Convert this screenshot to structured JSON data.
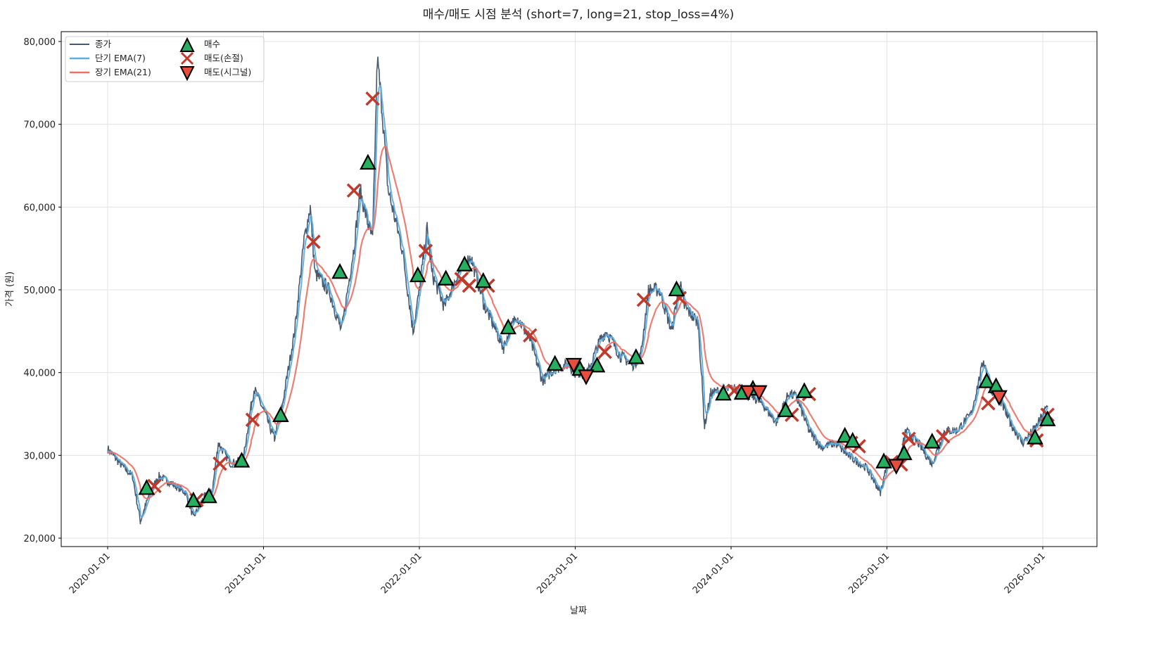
{
  "chart_data": {
    "type": "line",
    "title": "매수/매도 시점 분석 (short=7, long=21, stop_loss=4%)",
    "xlabel": "날짜",
    "ylabel": "가격 (원)",
    "xlim_year": [
      2019.85,
      2026.35
    ],
    "ylim": [
      19000,
      81000
    ],
    "grid": true,
    "legend_position": "top-left",
    "x_ticks": [
      {
        "year": 2020,
        "label": "2020-01-01"
      },
      {
        "year": 2021,
        "label": "2021-01-01"
      },
      {
        "year": 2022,
        "label": "2022-01-01"
      },
      {
        "year": 2023,
        "label": "2023-01-01"
      },
      {
        "year": 2024,
        "label": "2024-01-01"
      },
      {
        "year": 2025,
        "label": "2025-01-01"
      },
      {
        "year": 2026,
        "label": "2026-01-01"
      }
    ],
    "y_ticks": [
      {
        "value": 20000,
        "label": "20,000"
      },
      {
        "value": 30000,
        "label": "30,000"
      },
      {
        "value": 40000,
        "label": "40,000"
      },
      {
        "value": 50000,
        "label": "50,000"
      },
      {
        "value": 60000,
        "label": "60,000"
      },
      {
        "value": 70000,
        "label": "70,000"
      },
      {
        "value": 80000,
        "label": "80,000"
      }
    ],
    "legend": [
      {
        "key": "close",
        "label": "종가",
        "color": "#4a5a6e"
      },
      {
        "key": "ema_short",
        "label": "단기 EMA(7)",
        "color": "#5dade2"
      },
      {
        "key": "ema_long",
        "label": "장기 EMA(21)",
        "color": "#ec7063"
      },
      {
        "key": "buy",
        "label": "매수",
        "color": "#27ae60"
      },
      {
        "key": "sell_stop",
        "label": "매도(손절)",
        "color": "#c0392b"
      },
      {
        "key": "sell_signal",
        "label": "매도(시그널)",
        "color": "#e74c3c"
      }
    ],
    "ema_periods": {
      "short": 7,
      "long": 21
    },
    "close_waypoints": [
      [
        2020.0,
        30800
      ],
      [
        2020.08,
        29000
      ],
      [
        2020.16,
        27500
      ],
      [
        2020.21,
        22000
      ],
      [
        2020.27,
        25500
      ],
      [
        2020.33,
        27500
      ],
      [
        2020.42,
        26500
      ],
      [
        2020.5,
        25500
      ],
      [
        2020.55,
        22500
      ],
      [
        2020.62,
        25000
      ],
      [
        2020.67,
        25500
      ],
      [
        2020.71,
        31500
      ],
      [
        2020.79,
        29000
      ],
      [
        2020.87,
        29500
      ],
      [
        2020.92,
        36000
      ],
      [
        2020.94,
        38000
      ],
      [
        2021.0,
        35500
      ],
      [
        2021.07,
        32000
      ],
      [
        2021.12,
        36000
      ],
      [
        2021.2,
        45000
      ],
      [
        2021.26,
        56000
      ],
      [
        2021.3,
        60000
      ],
      [
        2021.33,
        52000
      ],
      [
        2021.42,
        50000
      ],
      [
        2021.5,
        45000
      ],
      [
        2021.58,
        55000
      ],
      [
        2021.62,
        62000
      ],
      [
        2021.67,
        58000
      ],
      [
        2021.7,
        56000
      ],
      [
        2021.73,
        78000
      ],
      [
        2021.76,
        72000
      ],
      [
        2021.8,
        62000
      ],
      [
        2021.89,
        55000
      ],
      [
        2021.96,
        45000
      ],
      [
        2022.0,
        50000
      ],
      [
        2022.05,
        57500
      ],
      [
        2022.08,
        52000
      ],
      [
        2022.16,
        48000
      ],
      [
        2022.25,
        52000
      ],
      [
        2022.33,
        54000
      ],
      [
        2022.42,
        48000
      ],
      [
        2022.47,
        46000
      ],
      [
        2022.54,
        43000
      ],
      [
        2022.62,
        47000
      ],
      [
        2022.71,
        44000
      ],
      [
        2022.79,
        39000
      ],
      [
        2022.87,
        40500
      ],
      [
        2022.96,
        41000
      ],
      [
        2023.0,
        40000
      ],
      [
        2023.08,
        40000
      ],
      [
        2023.16,
        44000
      ],
      [
        2023.2,
        45000
      ],
      [
        2023.29,
        42000
      ],
      [
        2023.37,
        41000
      ],
      [
        2023.42,
        42000
      ],
      [
        2023.47,
        50000
      ],
      [
        2023.54,
        50000
      ],
      [
        2023.62,
        45000
      ],
      [
        2023.67,
        51000
      ],
      [
        2023.7,
        48000
      ],
      [
        2023.79,
        46000
      ],
      [
        2023.83,
        33500
      ],
      [
        2023.87,
        37500
      ],
      [
        2023.96,
        38000
      ],
      [
        2024.04,
        38000
      ],
      [
        2024.12,
        37500
      ],
      [
        2024.21,
        36000
      ],
      [
        2024.29,
        34000
      ],
      [
        2024.37,
        37500
      ],
      [
        2024.42,
        37000
      ],
      [
        2024.5,
        33000
      ],
      [
        2024.58,
        31000
      ],
      [
        2024.67,
        31500
      ],
      [
        2024.75,
        30000
      ],
      [
        2024.87,
        28500
      ],
      [
        2024.96,
        25500
      ],
      [
        2025.0,
        29000
      ],
      [
        2025.08,
        29000
      ],
      [
        2025.12,
        33000
      ],
      [
        2025.2,
        31500
      ],
      [
        2025.29,
        29000
      ],
      [
        2025.37,
        33000
      ],
      [
        2025.45,
        33000
      ],
      [
        2025.54,
        35000
      ],
      [
        2025.62,
        41500
      ],
      [
        2025.67,
        38000
      ],
      [
        2025.72,
        37000
      ],
      [
        2025.79,
        34000
      ],
      [
        2025.87,
        31500
      ],
      [
        2025.96,
        33500
      ],
      [
        2026.03,
        36000
      ]
    ],
    "buy_points": [
      [
        2020.25,
        26000
      ],
      [
        2020.55,
        24500
      ],
      [
        2020.65,
        25000
      ],
      [
        2020.86,
        29300
      ],
      [
        2021.11,
        34800
      ],
      [
        2021.49,
        52100
      ],
      [
        2021.67,
        65300
      ],
      [
        2021.99,
        51700
      ],
      [
        2022.17,
        51300
      ],
      [
        2022.29,
        53000
      ],
      [
        2022.41,
        51000
      ],
      [
        2022.57,
        45400
      ],
      [
        2022.87,
        41000
      ],
      [
        2023.03,
        40400
      ],
      [
        2023.14,
        40800
      ],
      [
        2023.39,
        41800
      ],
      [
        2023.65,
        50000
      ],
      [
        2023.95,
        37400
      ],
      [
        2024.07,
        37500
      ],
      [
        2024.14,
        38000
      ],
      [
        2024.35,
        35400
      ],
      [
        2024.47,
        37700
      ],
      [
        2024.73,
        32300
      ],
      [
        2024.78,
        31700
      ],
      [
        2024.98,
        29200
      ],
      [
        2025.11,
        30200
      ],
      [
        2025.29,
        31600
      ],
      [
        2025.64,
        38900
      ],
      [
        2025.7,
        38300
      ],
      [
        2025.95,
        32100
      ],
      [
        2026.03,
        34300
      ]
    ],
    "sell_stop_points": [
      [
        2020.3,
        26300
      ],
      [
        2020.57,
        24600
      ],
      [
        2020.72,
        29000
      ],
      [
        2020.93,
        34300
      ],
      [
        2021.32,
        55800
      ],
      [
        2021.58,
        62000
      ],
      [
        2021.7,
        73100
      ],
      [
        2022.04,
        54700
      ],
      [
        2022.27,
        51300
      ],
      [
        2022.32,
        50500
      ],
      [
        2022.44,
        50500
      ],
      [
        2022.71,
        44500
      ],
      [
        2023.19,
        42500
      ],
      [
        2023.44,
        48800
      ],
      [
        2023.67,
        49000
      ],
      [
        2024.02,
        37800
      ],
      [
        2024.39,
        34900
      ],
      [
        2024.5,
        37400
      ],
      [
        2024.77,
        31500
      ],
      [
        2024.82,
        31100
      ],
      [
        2025.03,
        29200
      ],
      [
        2025.09,
        28900
      ],
      [
        2025.14,
        32000
      ],
      [
        2025.36,
        32300
      ],
      [
        2025.65,
        36300
      ],
      [
        2025.96,
        31800
      ],
      [
        2026.03,
        34900
      ]
    ],
    "sell_signal_points": [
      [
        2022.99,
        41000
      ],
      [
        2023.07,
        39600
      ],
      [
        2024.11,
        37700
      ],
      [
        2024.18,
        37700
      ],
      [
        2025.06,
        28800
      ],
      [
        2025.72,
        37100
      ]
    ]
  }
}
